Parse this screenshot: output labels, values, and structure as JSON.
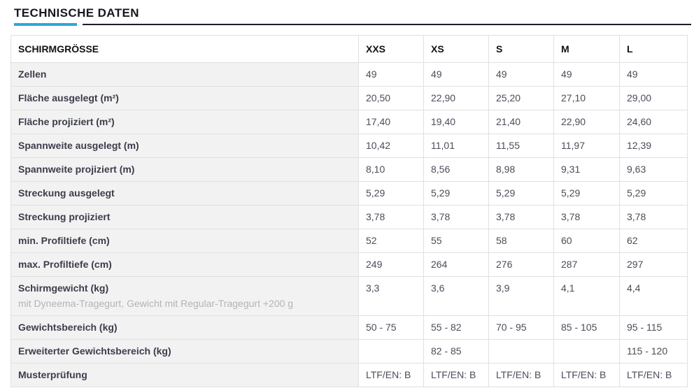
{
  "section": {
    "title": "TECHNISCHE DATEN"
  },
  "colors": {
    "accent_blue": "#29a8dc",
    "rule_dark": "#1b1c2e",
    "label_column_bg": "#f2f2f2",
    "border": "#e0e0e0",
    "label_text": "#3b3d4b",
    "value_text": "#4b4d58",
    "note_text": "#b3b4b8"
  },
  "table": {
    "header": {
      "label": "SCHIRMGRÖSSE",
      "columns": [
        "XXS",
        "XS",
        "S",
        "M",
        "L"
      ]
    },
    "rows": [
      {
        "label": "Zellen",
        "values": [
          "49",
          "49",
          "49",
          "49",
          "49"
        ]
      },
      {
        "label": "Fläche ausgelegt (m²)",
        "values": [
          "20,50",
          "22,90",
          "25,20",
          "27,10",
          "29,00"
        ]
      },
      {
        "label": "Fläche projiziert (m²)",
        "values": [
          "17,40",
          "19,40",
          "21,40",
          "22,90",
          "24,60"
        ]
      },
      {
        "label": "Spannweite ausgelegt (m)",
        "values": [
          "10,42",
          "11,01",
          "11,55",
          "11,97",
          "12,39"
        ]
      },
      {
        "label": "Spannweite projiziert (m)",
        "values": [
          "8,10",
          "8,56",
          "8,98",
          "9,31",
          "9,63"
        ]
      },
      {
        "label": "Streckung ausgelegt",
        "values": [
          "5,29",
          "5,29",
          "5,29",
          "5,29",
          "5,29"
        ]
      },
      {
        "label": "Streckung projiziert",
        "values": [
          "3,78",
          "3,78",
          "3,78",
          "3,78",
          "3,78"
        ]
      },
      {
        "label": "min. Profiltiefe (cm)",
        "values": [
          "52",
          "55",
          "58",
          "60",
          "62"
        ]
      },
      {
        "label": "max. Profiltiefe (cm)",
        "values": [
          "249",
          "264",
          "276",
          "287",
          "297"
        ]
      },
      {
        "label": "Schirmgewicht (kg)",
        "note": "mit Dyneema-Tragegurt, Gewicht mit Regular-Tragegurt +200 g",
        "values": [
          "3,3",
          "3,6",
          "3,9",
          "4,1",
          "4,4"
        ]
      },
      {
        "label": "Gewichtsbereich (kg)",
        "values": [
          "50 - 75",
          "55 - 82",
          "70 - 95",
          "85 - 105",
          "95 - 115"
        ]
      },
      {
        "label": "Erweiterter Gewichtsbereich (kg)",
        "values": [
          "",
          "82 - 85",
          "",
          "",
          "115 - 120"
        ]
      },
      {
        "label": "Musterprüfung",
        "values": [
          "LTF/EN: B",
          "LTF/EN: B",
          "LTF/EN: B",
          "LTF/EN: B",
          "LTF/EN: B"
        ]
      }
    ]
  }
}
